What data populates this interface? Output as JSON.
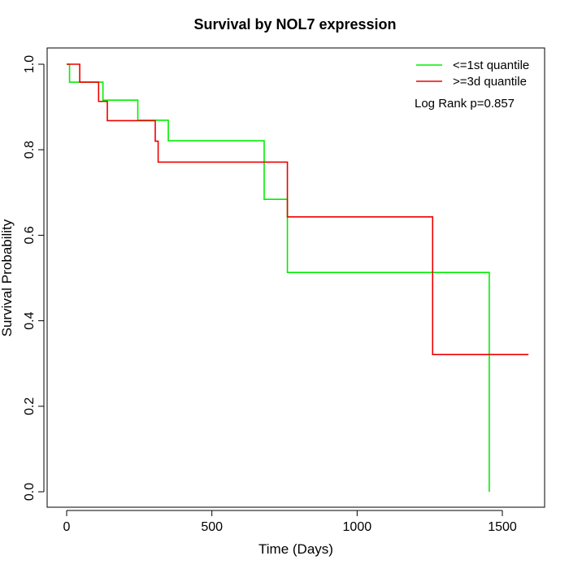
{
  "chart_data": {
    "type": "line",
    "step": true,
    "title": "Survival by NOL7 expression",
    "xlabel": "Time (Days)",
    "ylabel": "Survival Probability",
    "xlim": [
      0,
      1600
    ],
    "ylim": [
      0,
      1.0
    ],
    "xticks": [
      0,
      500,
      1000,
      1500
    ],
    "yticks": [
      0.0,
      0.2,
      0.4,
      0.6,
      0.8,
      1.0
    ],
    "ytick_labels": [
      "0.0",
      "0.2",
      "0.4",
      "0.6",
      "0.8",
      "1.0"
    ],
    "grid": false,
    "legend_position": "top-right",
    "annotation": "Log Rank p=0.857",
    "series": [
      {
        "name": "<=1st quantile",
        "color": "#00ee00",
        "x": [
          0,
          10,
          125,
          245,
          350,
          680,
          760,
          1455,
          1455
        ],
        "y": [
          1.0,
          0.958,
          0.916,
          0.869,
          0.821,
          0.684,
          0.513,
          0.513,
          0.0
        ]
      },
      {
        "name": ">=3d quantile",
        "color": "#ee0000",
        "x": [
          0,
          45,
          110,
          140,
          305,
          315,
          760,
          1260,
          1590
        ],
        "y": [
          1.0,
          0.958,
          0.913,
          0.868,
          0.82,
          0.771,
          0.643,
          0.321,
          0.321
        ]
      }
    ]
  }
}
